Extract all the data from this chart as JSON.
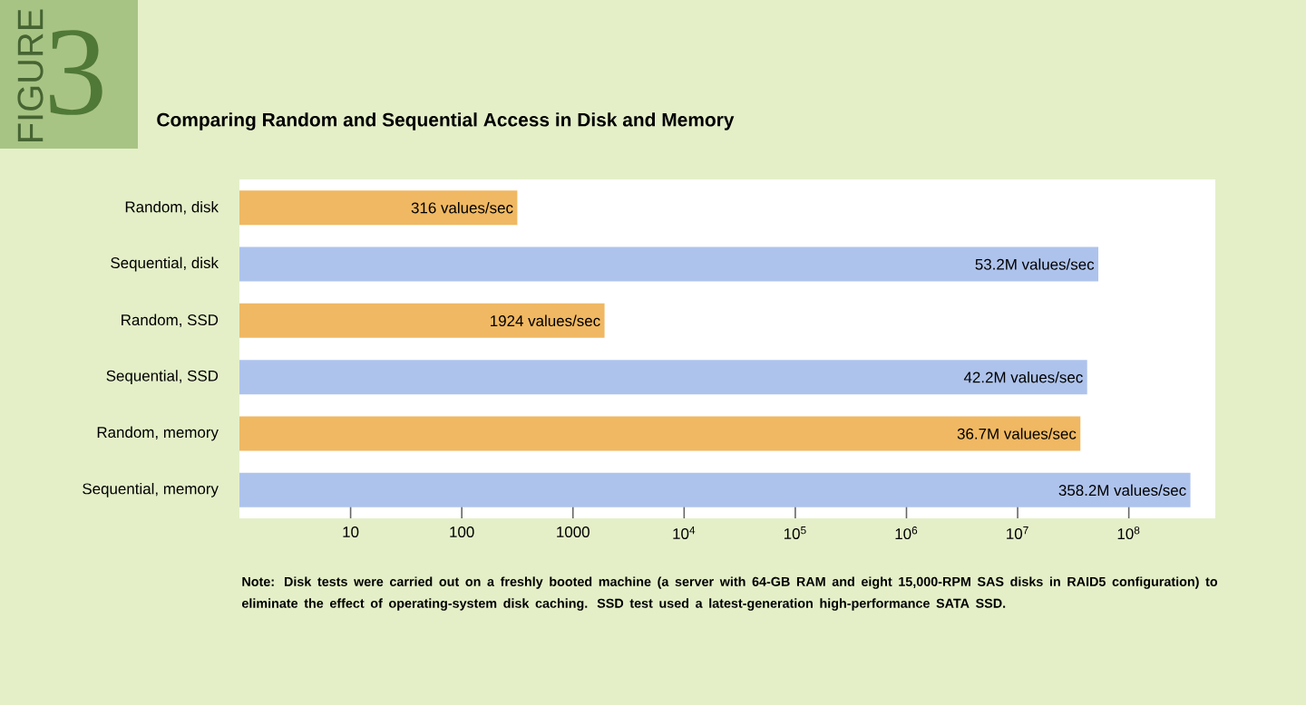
{
  "chart_data": {
    "type": "bar",
    "orientation": "horizontal",
    "log": "x",
    "title": "Comparing Random and Sequential Access in Disk and Memory",
    "categories": [
      "Random, disk",
      "Sequential, disk",
      "Random, SSD",
      "Sequential, SSD",
      "Random, memory",
      "Sequential, memory"
    ],
    "values": [
      316,
      53200000,
      1924,
      42200000,
      36700000,
      358200000
    ],
    "colors": [
      "#f0b862",
      "#aec3ec",
      "#f0b862",
      "#aec3ec",
      "#f0b862",
      "#aec3ec"
    ],
    "value_labels": [
      "316 values/sec",
      "53.2M values/sec",
      "1924 values/sec",
      "42.2M values/sec",
      "36.7M values/sec",
      "358.2M values/sec"
    ],
    "xlim": [
      1,
      600000000
    ],
    "xticks": [
      10,
      100,
      1000,
      {
        "value": 10000,
        "label": "10$^{4}$"
      },
      {
        "value": 100000,
        "label": "10$^{5}$"
      },
      {
        "value": 1000000,
        "label": "10$^{6}$"
      },
      {
        "value": 10000000,
        "label": "10$^{7}$"
      },
      {
        "value": 100000000,
        "label": "10$^{8}$"
      }
    ],
    "annotations": [
      "FIGURE",
      "3",
      "Note: Disk tests were carried out on a freshly booted machine (a server with 64-GB RAM and eight 15,000-RPM SAS disks in RAID5 configuration) to eliminate the effect of operating-system disk caching. SSD test used a latest-generation high-performance SATA SSD."
    ]
  }
}
